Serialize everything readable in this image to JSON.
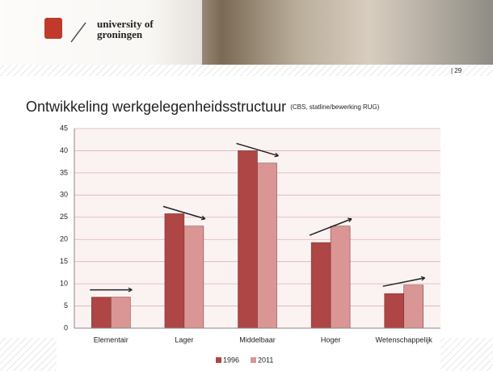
{
  "header": {
    "logo_line1": "university of",
    "logo_line2": "groningen",
    "page_number": "| 29"
  },
  "chart_data": {
    "type": "bar",
    "title": "Ontwikkeling werkgelegenheidsstructuur",
    "subtitle": "(CBS, statline/bewerking RUG)",
    "categories": [
      "Elementair",
      "Lager",
      "Middelbaar",
      "Hoger",
      "Wetenschappelijk"
    ],
    "series": [
      {
        "name": "1996",
        "color": "#ad4644",
        "values": [
          7,
          25.8,
          40,
          19.3,
          7.8
        ]
      },
      {
        "name": "2011",
        "color": "#d99694",
        "values": [
          7,
          23,
          37.2,
          23,
          9.7
        ]
      }
    ],
    "ylim": [
      0,
      45
    ],
    "yticks": [
      0,
      5,
      10,
      15,
      20,
      25,
      30,
      35,
      40,
      45
    ],
    "grid": true,
    "legend": "bottom"
  }
}
